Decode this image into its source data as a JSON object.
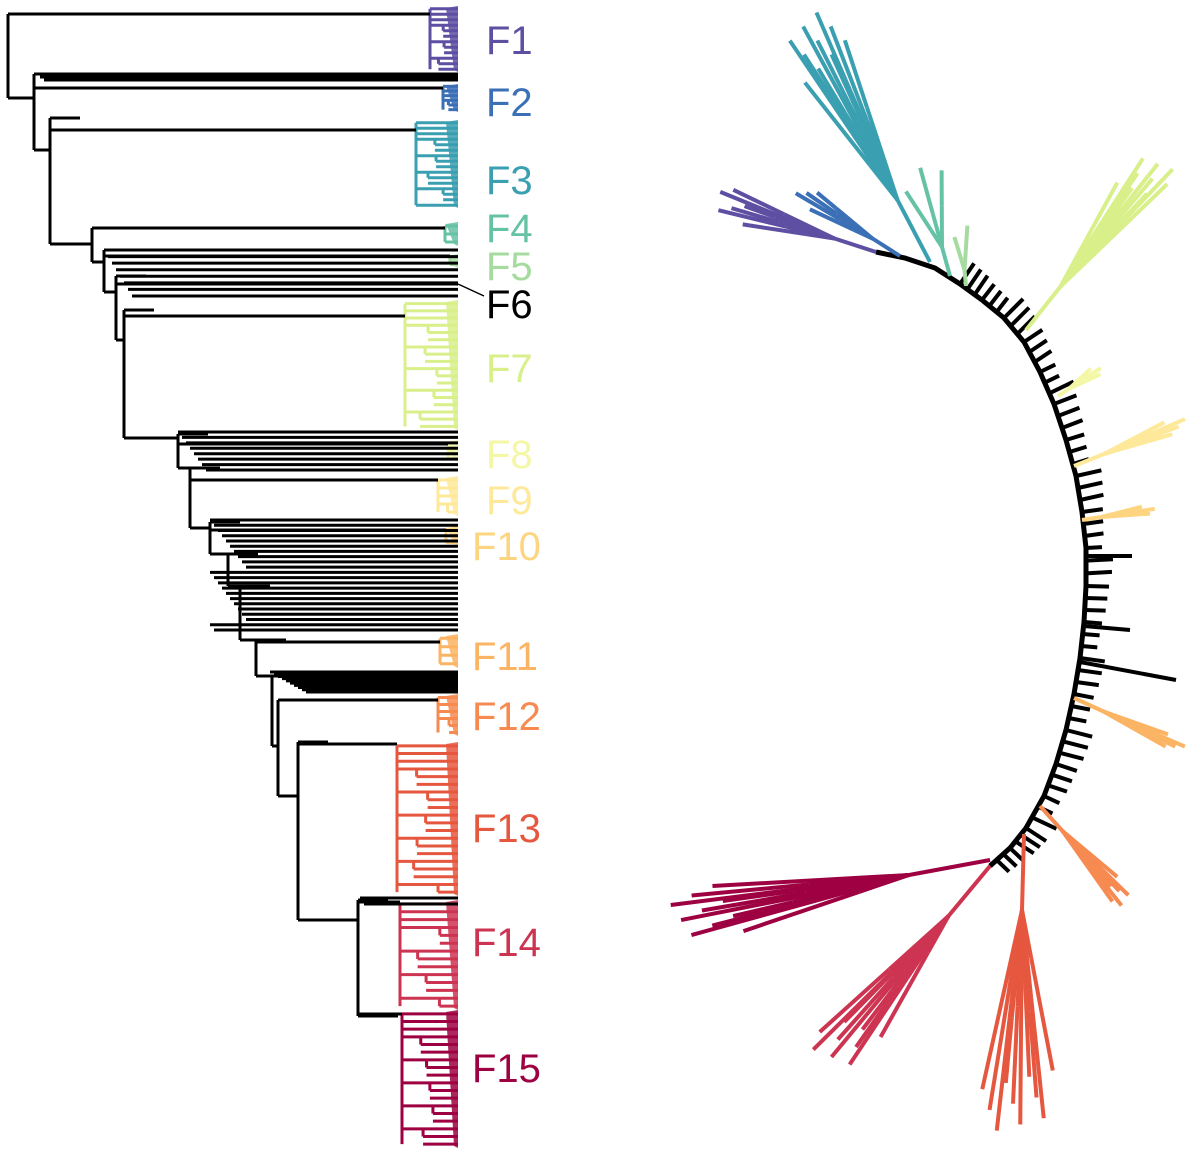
{
  "figure": {
    "left_panel": "rectangular-dendrogram",
    "right_panel": "unrooted-radial-tree"
  },
  "families": [
    {
      "id": "F1",
      "label": "F1",
      "color": "#5e4fa2",
      "tips": 12
    },
    {
      "id": "F2",
      "label": "F2",
      "color": "#3b6fb6",
      "tips": 6
    },
    {
      "id": "F3",
      "label": "F3",
      "color": "#3a9fb0",
      "tips": 16
    },
    {
      "id": "F4",
      "label": "F4",
      "color": "#66c2a5",
      "tips": 3
    },
    {
      "id": "F5",
      "label": "F5",
      "color": "#a6dba0",
      "tips": 2
    },
    {
      "id": "F6",
      "label": "F6",
      "color": "#000000",
      "tips": 1
    },
    {
      "id": "F7",
      "label": "F7",
      "color": "#d8ef8a",
      "tips": 18
    },
    {
      "id": "F8",
      "label": "F8",
      "color": "#f4f7a6",
      "tips": 3
    },
    {
      "id": "F9",
      "label": "F9",
      "color": "#fee99a",
      "tips": 5
    },
    {
      "id": "F10",
      "label": "F10",
      "color": "#fdd580",
      "tips": 3
    },
    {
      "id": "F11",
      "label": "F11",
      "color": "#fbb463",
      "tips": 4
    },
    {
      "id": "F12",
      "label": "F12",
      "color": "#f68a50",
      "tips": 6
    },
    {
      "id": "F13",
      "label": "F13",
      "color": "#e6573f",
      "tips": 20
    },
    {
      "id": "F14",
      "label": "F14",
      "color": "#cc3451",
      "tips": 14
    },
    {
      "id": "F15",
      "label": "F15",
      "color": "#9e0142",
      "tips": 18
    }
  ],
  "backbone_color": "#000000"
}
